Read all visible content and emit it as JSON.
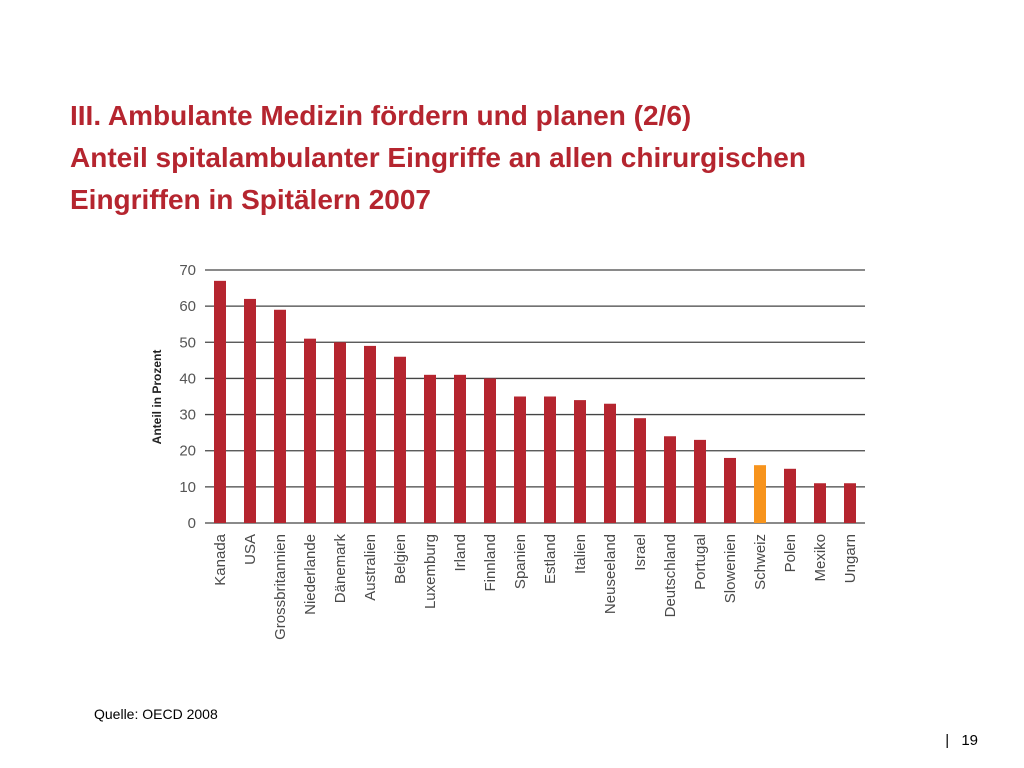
{
  "slide": {
    "title_lines": [
      "III. Ambulante Medizin fördern und planen (2/6)",
      "Anteil spitalambulanter Eingriffe an allen chirurgischen",
      "Eingriffen in Spitälern 2007"
    ],
    "source": "Quelle: OECD 2008",
    "page_separator": "|",
    "page_number": "19"
  },
  "colors": {
    "title": "#b5252f",
    "bar": "#b5252f",
    "highlight": "#f7941d",
    "grid": "#444444"
  },
  "chart_data": {
    "type": "bar",
    "title": "",
    "xlabel": "",
    "ylabel": "Anteil in Prozent",
    "ylim": [
      0,
      70
    ],
    "yticks": [
      0,
      10,
      20,
      30,
      40,
      50,
      60,
      70
    ],
    "grid": true,
    "categories": [
      "Kanada",
      "USA",
      "Grossbritannien",
      "Niederlande",
      "Dänemark",
      "Australien",
      "Belgien",
      "Luxemburg",
      "Irland",
      "Finnland",
      "Spanien",
      "Estland",
      "Italien",
      "Neuseeland",
      "Israel",
      "Deutschland",
      "Portugal",
      "Slowenien",
      "Schweiz",
      "Polen",
      "Mexiko",
      "Ungarn"
    ],
    "values": [
      67,
      62,
      59,
      51,
      50,
      49,
      46,
      41,
      41,
      40,
      35,
      35,
      34,
      33,
      29,
      24,
      23,
      18,
      16,
      15,
      11,
      11
    ],
    "highlight_category": "Schweiz"
  }
}
